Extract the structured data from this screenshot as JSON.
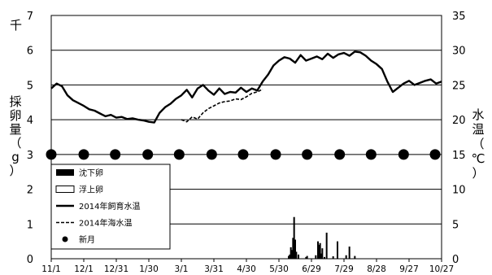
{
  "chart_data": {
    "type": "bar+line",
    "left_unit": "千",
    "left_axis": {
      "label_chars": [
        "採",
        "卵",
        "量",
        "（",
        "g",
        "）"
      ],
      "ylim": [
        0,
        7
      ],
      "ticks": [
        "0",
        "1",
        "2",
        "3",
        "4",
        "5",
        "6",
        "7"
      ]
    },
    "right_axis": {
      "label_chars": [
        "水",
        "温",
        "（",
        "℃",
        "）"
      ],
      "ylim": [
        0,
        35
      ],
      "ticks": [
        "0",
        "5",
        "10",
        "15",
        "20",
        "25",
        "30",
        "35"
      ]
    },
    "x_ticks": [
      "11/1",
      "12/1",
      "12/31",
      "1/30",
      "3/1",
      "3/31",
      "4/30",
      "5/30",
      "6/29",
      "7/29",
      "8/28",
      "9/27",
      "10/27"
    ],
    "x_range_days": [
      0,
      360
    ],
    "grid": "horizontal",
    "legend": {
      "position": "bottom-left",
      "items": [
        {
          "label": "沈下卵",
          "style": "bar-filled"
        },
        {
          "label": "浮上卵",
          "style": "bar-open"
        },
        {
          "label": "2014年飼育水温",
          "style": "solid-line"
        },
        {
          "label": "2014年海水温",
          "style": "dashed-line"
        },
        {
          "label": "新月",
          "style": "dot"
        }
      ]
    },
    "series": [
      {
        "name": "2014年飼育水温",
        "axis": "right",
        "x": [
          0,
          5,
          10,
          15,
          20,
          25,
          30,
          35,
          40,
          45,
          50,
          55,
          60,
          65,
          70,
          75,
          80,
          85,
          90,
          95,
          100,
          105,
          110,
          115,
          120,
          125,
          130,
          135,
          140,
          145,
          150,
          155,
          160,
          165,
          170,
          175,
          180,
          185,
          190,
          195,
          200,
          205,
          210,
          215,
          220,
          225,
          230,
          235,
          240,
          245,
          250,
          255,
          260,
          265,
          270,
          275,
          280,
          285,
          290,
          295,
          300,
          305,
          310,
          315,
          320,
          325,
          330,
          335,
          340,
          345,
          350,
          355,
          360
        ],
        "values": [
          24.5,
          25.2,
          24.8,
          23.5,
          22.8,
          22.4,
          22.0,
          21.5,
          21.3,
          20.9,
          20.5,
          20.7,
          20.3,
          20.4,
          20.1,
          20.2,
          20.0,
          19.9,
          19.7,
          19.6,
          21.0,
          21.8,
          22.3,
          23.0,
          23.5,
          24.3,
          23.2,
          24.5,
          25.0,
          24.2,
          23.6,
          24.5,
          23.7,
          24.0,
          23.9,
          24.6,
          24.0,
          24.5,
          24.2,
          25.5,
          26.5,
          27.8,
          28.5,
          29.0,
          28.8,
          28.2,
          29.3,
          28.5,
          28.8,
          29.1,
          28.7,
          29.5,
          28.9,
          29.4,
          29.6,
          29.2,
          29.8,
          29.7,
          29.2,
          28.5,
          28.0,
          27.3,
          25.5,
          24.0,
          24.6,
          25.2,
          25.6,
          25.0,
          25.3,
          25.6,
          25.8,
          25.2,
          25.5
        ]
      },
      {
        "name": "2014年海水温",
        "axis": "right",
        "x": [
          120,
          125,
          130,
          135,
          140,
          145,
          150,
          155,
          160,
          165,
          170,
          175,
          180,
          185,
          190,
          195
        ],
        "values": [
          20.0,
          19.7,
          20.4,
          20.1,
          21.0,
          21.6,
          22.0,
          22.4,
          22.6,
          22.7,
          23.0,
          22.9,
          23.3,
          23.8,
          24.0,
          24.4
        ]
      },
      {
        "name": "新月",
        "axis": "left",
        "style": "dot",
        "x": [
          0,
          30,
          59,
          89,
          118,
          148,
          177,
          207,
          236,
          266,
          295,
          325,
          354
        ],
        "values": [
          3,
          3,
          3,
          3,
          3,
          3,
          3,
          3,
          3,
          3,
          3,
          3,
          3
        ]
      },
      {
        "name": "沈下卵",
        "axis": "left",
        "style": "bar",
        "x": [
          219,
          220,
          221,
          222,
          223,
          224,
          225,
          226,
          228,
          235,
          236,
          244,
          246,
          247,
          248,
          249,
          250,
          252,
          254,
          260,
          264,
          272,
          275,
          280
        ],
        "values": [
          0.08,
          0.12,
          0.33,
          0.25,
          0.6,
          1.2,
          0.55,
          0.2,
          0.12,
          0.05,
          0.08,
          0.1,
          0.5,
          0.4,
          0.45,
          0.15,
          0.3,
          0.05,
          0.75,
          0.07,
          0.5,
          0.1,
          0.35,
          0.08
        ]
      }
    ]
  }
}
